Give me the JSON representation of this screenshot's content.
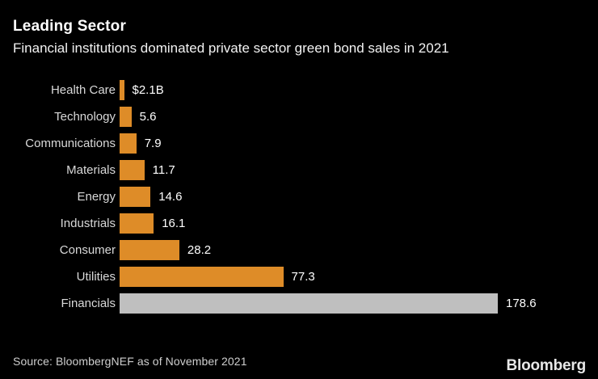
{
  "header": {
    "title": "Leading Sector",
    "subtitle": "Financial institutions dominated private sector green bond sales in 2021"
  },
  "chart_data": {
    "type": "bar",
    "orientation": "horizontal",
    "title": "Leading Sector",
    "subtitle": "Financial institutions dominated private sector green bond sales in 2021",
    "categories": [
      "Health Care",
      "Technology",
      "Communications",
      "Materials",
      "Energy",
      "Industrials",
      "Consumer",
      "Utilities",
      "Financials"
    ],
    "values": [
      2.1,
      5.6,
      7.9,
      11.7,
      14.6,
      16.1,
      28.2,
      77.3,
      178.6
    ],
    "value_labels": [
      "$2.1B",
      "5.6",
      "7.9",
      "11.7",
      "14.6",
      "16.1",
      "28.2",
      "77.3",
      "178.6"
    ],
    "xlim": [
      0,
      178.6
    ],
    "grid": false,
    "legend": false,
    "bar_color": "#DE8C28",
    "highlight": {
      "category": "Financials",
      "color": "#BFBFBF"
    }
  },
  "footer": {
    "source": "Source: BloombergNEF as of November 2021",
    "logo": "Bloomberg"
  }
}
